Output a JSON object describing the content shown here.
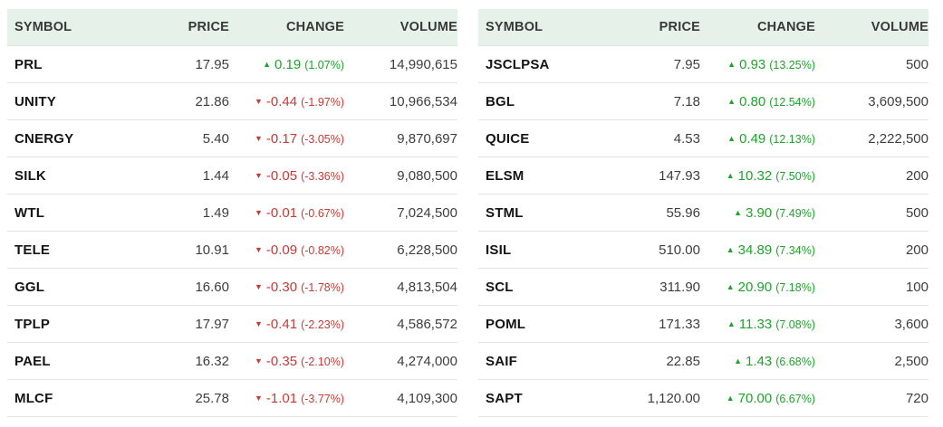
{
  "colors": {
    "header_background": "#e6f2e9",
    "positive": "#1fa32b",
    "negative": "#c63b35"
  },
  "icons": {
    "up": "▲",
    "down": "▼"
  },
  "tables": [
    {
      "headers": {
        "symbol": "SYMBOL",
        "price": "PRICE",
        "change": "CHANGE",
        "volume": "VOLUME"
      },
      "rows": [
        {
          "symbol": "PRL",
          "price": "17.95",
          "direction": "up",
          "change": "0.19",
          "change_pct": "(1.07%)",
          "volume": "14,990,615"
        },
        {
          "symbol": "UNITY",
          "price": "21.86",
          "direction": "down",
          "change": "-0.44",
          "change_pct": "(-1.97%)",
          "volume": "10,966,534"
        },
        {
          "symbol": "CNERGY",
          "price": "5.40",
          "direction": "down",
          "change": "-0.17",
          "change_pct": "(-3.05%)",
          "volume": "9,870,697"
        },
        {
          "symbol": "SILK",
          "price": "1.44",
          "direction": "down",
          "change": "-0.05",
          "change_pct": "(-3.36%)",
          "volume": "9,080,500"
        },
        {
          "symbol": "WTL",
          "price": "1.49",
          "direction": "down",
          "change": "-0.01",
          "change_pct": "(-0.67%)",
          "volume": "7,024,500"
        },
        {
          "symbol": "TELE",
          "price": "10.91",
          "direction": "down",
          "change": "-0.09",
          "change_pct": "(-0.82%)",
          "volume": "6,228,500"
        },
        {
          "symbol": "GGL",
          "price": "16.60",
          "direction": "down",
          "change": "-0.30",
          "change_pct": "(-1.78%)",
          "volume": "4,813,504"
        },
        {
          "symbol": "TPLP",
          "price": "17.97",
          "direction": "down",
          "change": "-0.41",
          "change_pct": "(-2.23%)",
          "volume": "4,586,572"
        },
        {
          "symbol": "PAEL",
          "price": "16.32",
          "direction": "down",
          "change": "-0.35",
          "change_pct": "(-2.10%)",
          "volume": "4,274,000"
        },
        {
          "symbol": "MLCF",
          "price": "25.78",
          "direction": "down",
          "change": "-1.01",
          "change_pct": "(-3.77%)",
          "volume": "4,109,300"
        }
      ]
    },
    {
      "headers": {
        "symbol": "SYMBOL",
        "price": "PRICE",
        "change": "CHANGE",
        "volume": "VOLUME"
      },
      "rows": [
        {
          "symbol": "JSCLPSA",
          "price": "7.95",
          "direction": "up",
          "change": "0.93",
          "change_pct": "(13.25%)",
          "volume": "500"
        },
        {
          "symbol": "BGL",
          "price": "7.18",
          "direction": "up",
          "change": "0.80",
          "change_pct": "(12.54%)",
          "volume": "3,609,500"
        },
        {
          "symbol": "QUICE",
          "price": "4.53",
          "direction": "up",
          "change": "0.49",
          "change_pct": "(12.13%)",
          "volume": "2,222,500"
        },
        {
          "symbol": "ELSM",
          "price": "147.93",
          "direction": "up",
          "change": "10.32",
          "change_pct": "(7.50%)",
          "volume": "200"
        },
        {
          "symbol": "STML",
          "price": "55.96",
          "direction": "up",
          "change": "3.90",
          "change_pct": "(7.49%)",
          "volume": "500"
        },
        {
          "symbol": "ISIL",
          "price": "510.00",
          "direction": "up",
          "change": "34.89",
          "change_pct": "(7.34%)",
          "volume": "200"
        },
        {
          "symbol": "SCL",
          "price": "311.90",
          "direction": "up",
          "change": "20.90",
          "change_pct": "(7.18%)",
          "volume": "100"
        },
        {
          "symbol": "POML",
          "price": "171.33",
          "direction": "up",
          "change": "11.33",
          "change_pct": "(7.08%)",
          "volume": "3,600"
        },
        {
          "symbol": "SAIF",
          "price": "22.85",
          "direction": "up",
          "change": "1.43",
          "change_pct": "(6.68%)",
          "volume": "2,500"
        },
        {
          "symbol": "SAPT",
          "price": "1,120.00",
          "direction": "up",
          "change": "70.00",
          "change_pct": "(6.67%)",
          "volume": "720"
        }
      ]
    }
  ]
}
